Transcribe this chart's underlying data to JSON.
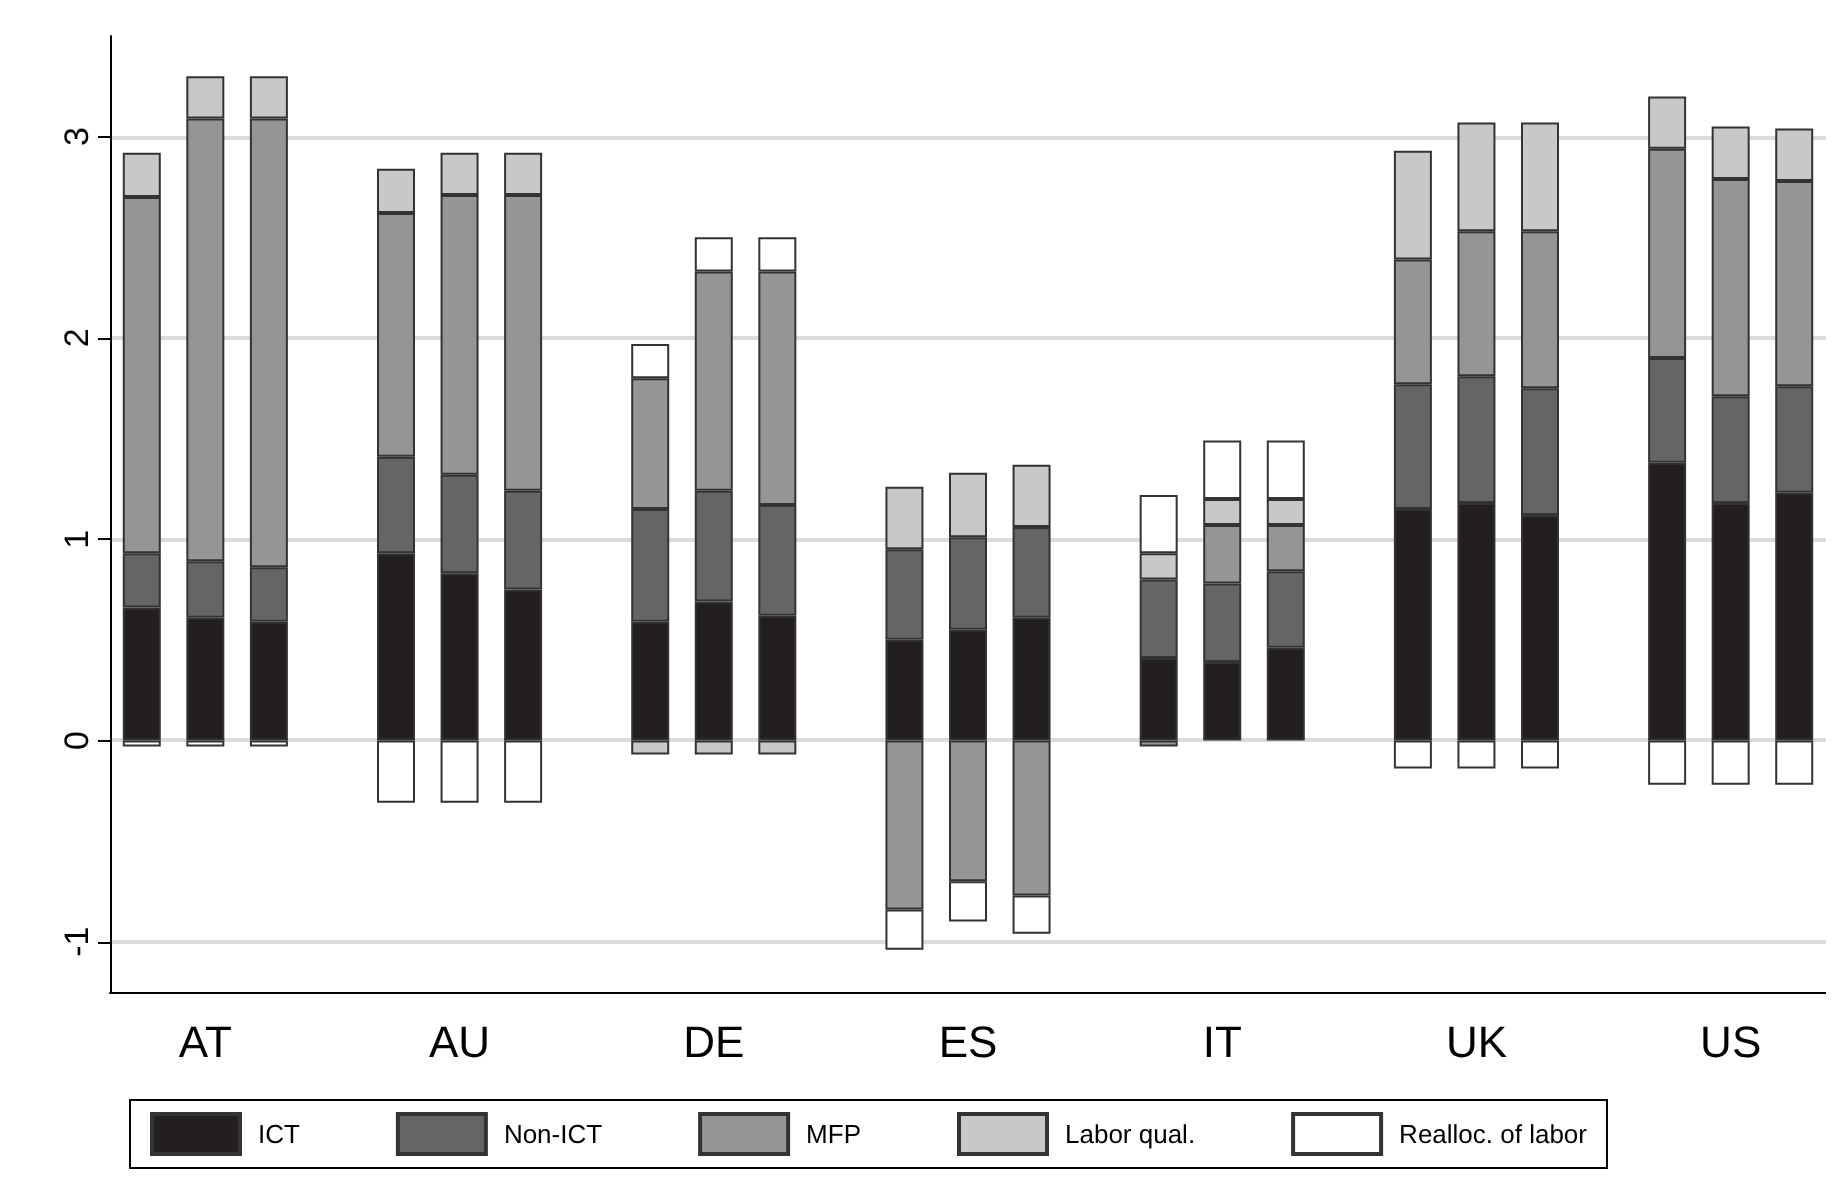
{
  "chart_data": {
    "type": "bar",
    "stacked": true,
    "categories": [
      null,
      "AT",
      null,
      null,
      null,
      "AU",
      null,
      null,
      null,
      "DE",
      null,
      null,
      null,
      "ES",
      null,
      null,
      null,
      "IT",
      null,
      null,
      null,
      "UK",
      null,
      null,
      null,
      "US",
      null
    ],
    "series": [
      {
        "name": "ICT",
        "color": "#231f20",
        "values": [
          0.66,
          0.61,
          0.59,
          null,
          0.93,
          0.83,
          0.75,
          null,
          0.59,
          0.69,
          0.62,
          null,
          0.5,
          0.55,
          0.61,
          null,
          0.41,
          0.39,
          0.46,
          null,
          1.15,
          1.18,
          1.12,
          null,
          1.38,
          1.18,
          1.23
        ]
      },
      {
        "name": "Non-ICT",
        "color": "#656565",
        "values": [
          0.27,
          0.28,
          0.27,
          null,
          0.48,
          0.49,
          0.49,
          null,
          0.56,
          0.55,
          0.55,
          null,
          0.45,
          0.46,
          0.45,
          null,
          0.39,
          0.39,
          0.38,
          null,
          0.62,
          0.63,
          0.63,
          null,
          0.52,
          0.53,
          0.53
        ]
      },
      {
        "name": "MFP",
        "color": "#959595",
        "values": [
          1.77,
          2.2,
          2.23,
          null,
          1.21,
          1.39,
          1.47,
          null,
          0.65,
          1.09,
          1.16,
          null,
          -0.84,
          -0.7,
          -0.77,
          null,
          -0.03,
          0.29,
          0.23,
          null,
          0.62,
          0.72,
          0.78,
          null,
          1.04,
          1.08,
          1.02
        ]
      },
      {
        "name": "Labor qual.",
        "color": "#c8c8c8",
        "values": [
          0.22,
          0.21,
          0.21,
          null,
          0.22,
          0.21,
          0.21,
          null,
          -0.07,
          -0.07,
          -0.07,
          null,
          0.31,
          0.32,
          0.31,
          null,
          0.13,
          0.13,
          0.13,
          null,
          0.54,
          0.54,
          0.54,
          null,
          0.26,
          0.26,
          0.26
        ]
      },
      {
        "name": "Realloc. of labor",
        "color": "#ffffff",
        "values": [
          -0.03,
          -0.03,
          -0.03,
          null,
          -0.31,
          -0.31,
          -0.31,
          null,
          0.17,
          0.17,
          0.17,
          null,
          -0.2,
          -0.2,
          -0.19,
          null,
          0.29,
          0.29,
          0.29,
          null,
          -0.14,
          -0.14,
          -0.14,
          null,
          -0.22,
          -0.22,
          -0.22
        ]
      }
    ],
    "ylim": [
      -1.25,
      3.5
    ],
    "yticks": [
      -1,
      0,
      1,
      2,
      3
    ],
    "grid": "y",
    "legend": "bottom"
  }
}
